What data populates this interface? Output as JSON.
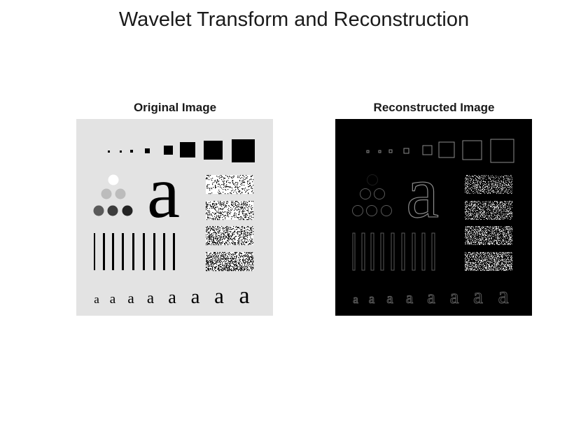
{
  "figure": {
    "title": "Wavelet Transform and Reconstruction"
  },
  "panels": [
    {
      "title": "Original Image",
      "background": "#e3e3e3",
      "foreground": "#000000"
    },
    {
      "title": "Reconstructed Image",
      "background": "#000000",
      "foreground": "#8c8c8c"
    }
  ],
  "test_pattern": {
    "large_glyph": "a",
    "glyph_row": [
      "a",
      "a",
      "a",
      "a",
      "a",
      "a",
      "a",
      "a",
      "a"
    ],
    "circle_gray_levels": [
      "#ffffff",
      "#b4b4b4",
      "#b4b4b4",
      "#646464",
      "#3c3c3c",
      "#1e1e1e",
      "#000000"
    ],
    "square_count": 8,
    "bar_count": 9,
    "noise_patches": 4
  }
}
